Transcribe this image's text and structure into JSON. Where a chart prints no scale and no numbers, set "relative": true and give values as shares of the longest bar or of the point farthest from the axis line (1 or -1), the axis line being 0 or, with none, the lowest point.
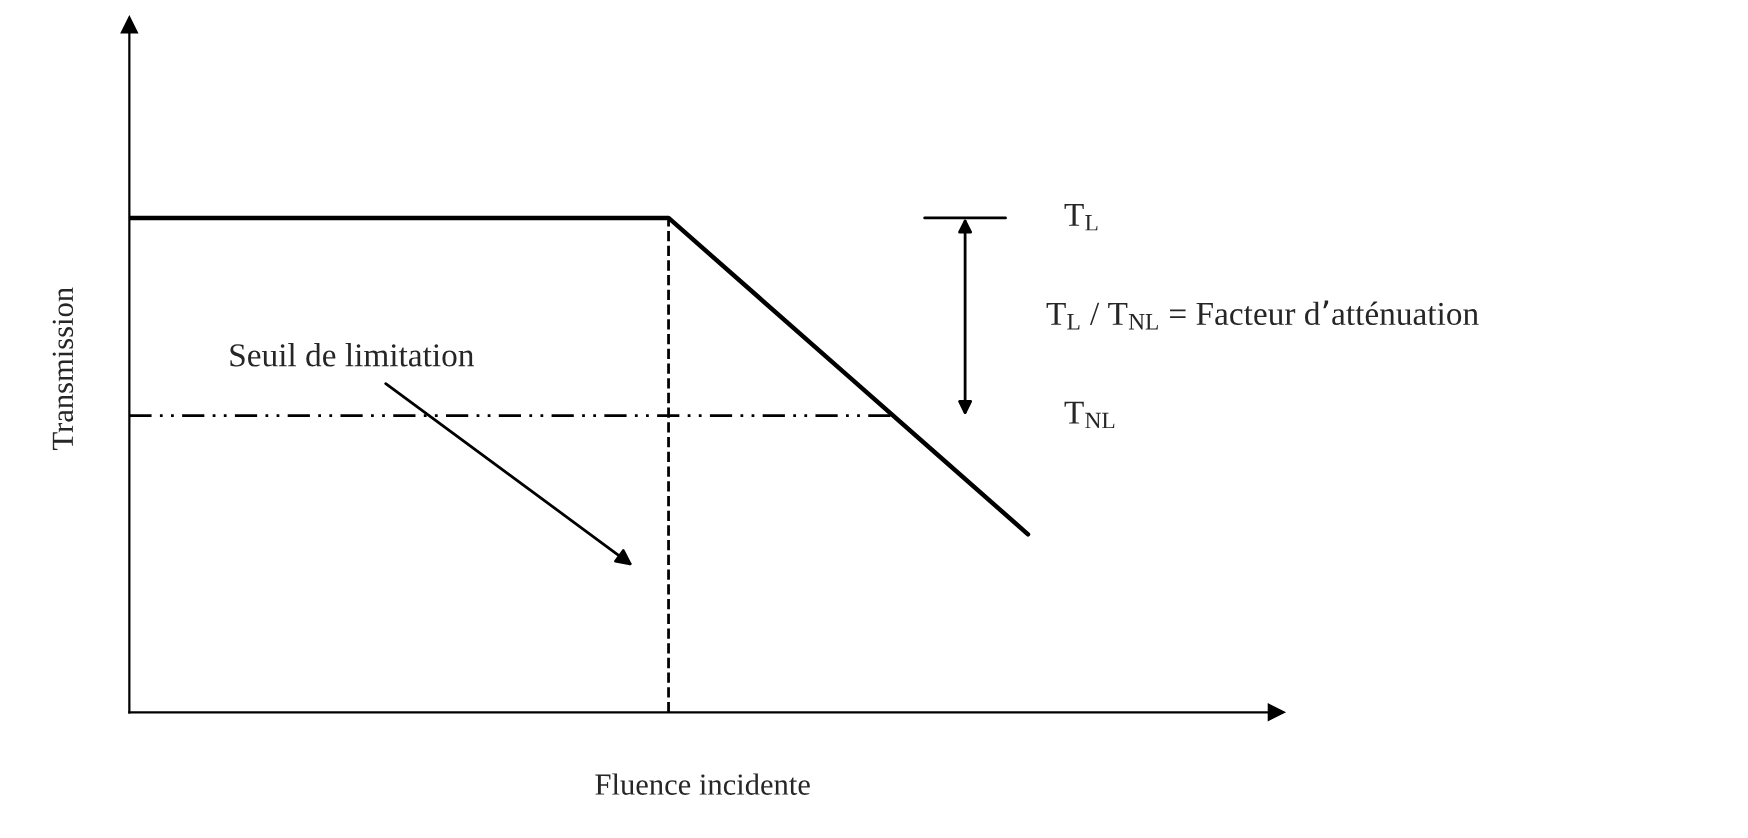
{
  "chart_data": {
    "type": "line",
    "relative": true,
    "xlabel": "Fluence incidente",
    "ylabel": "Transmission",
    "categories": [
      null,
      null,
      null,
      null,
      null,
      null,
      null,
      null,
      null,
      null,
      null
    ],
    "series": [
      {
        "color": "#000000",
        "values": [
          1,
          1,
          1,
          1,
          1,
          1,
          1,
          0.84,
          0.68,
          0.52,
          0.36
        ]
      }
    ],
    "ref_lines": [
      {
        "axis": "y",
        "value": 0.6,
        "line_style": "dashdot",
        "color": "#000000"
      }
    ],
    "annotations": [
      "T$_{L}$",
      "T$_{NL}$",
      "T$_{L}$ / T$_{NL}$ = Facteur d’atténuation",
      "Seuil de limitation"
    ],
    "legend": false,
    "marker": "none",
    "line_style": "solid"
  }
}
